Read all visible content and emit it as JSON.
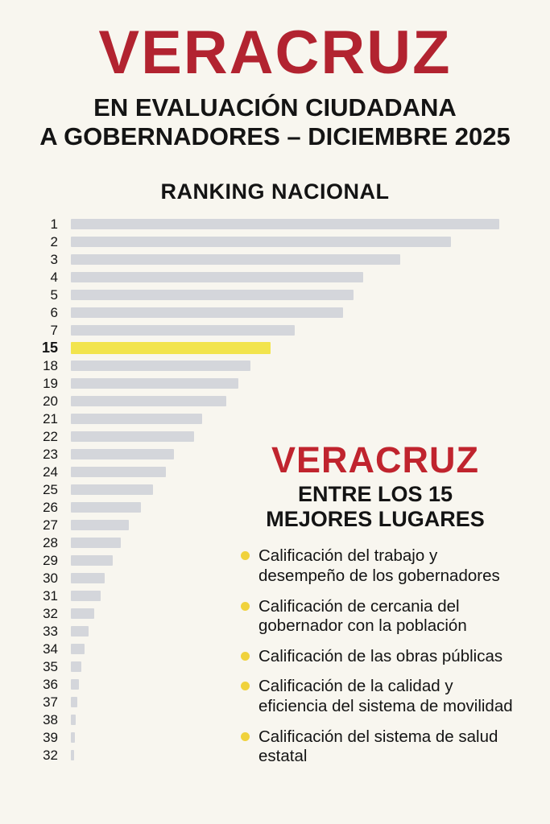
{
  "header": {
    "title": "VERACRUZ",
    "subtitle_line1": "EN EVALUACIÓN CIUDADANA",
    "subtitle_line2": "A GOBERNADORES – DICIEMBRE 2025"
  },
  "chart_data": {
    "type": "bar",
    "orientation": "horizontal",
    "title": "RANKING NACIONAL",
    "categories": [
      "1",
      "2",
      "3",
      "4",
      "5",
      "6",
      "7",
      "15",
      "18",
      "19",
      "20",
      "21",
      "22",
      "23",
      "24",
      "25",
      "26",
      "27",
      "28",
      "29",
      "30",
      "31",
      "32",
      "33",
      "34",
      "35",
      "36",
      "37",
      "38",
      "39",
      "32"
    ],
    "values": [
      100,
      88.7,
      76.8,
      68.3,
      66.0,
      63.6,
      52.3,
      46.6,
      41.9,
      39.1,
      36.2,
      30.6,
      28.7,
      24.0,
      22.1,
      19.2,
      16.4,
      13.6,
      11.7,
      9.8,
      7.9,
      7.0,
      5.5,
      4.2,
      3.2,
      2.5,
      1.9,
      1.5,
      1.1,
      0.9,
      0.8
    ],
    "xlim": [
      0,
      100
    ],
    "highlight_label": "15",
    "bar_color": "#d4d6db",
    "highlight_color": "#f2e44d",
    "grid": false,
    "legend": "none",
    "value_unit": "relative bar length (percent of longest bar)"
  },
  "panel": {
    "title": "VERACRUZ",
    "subtitle_line1": "ENTRE LOS 15",
    "subtitle_line2": "MEJORES LUGARES",
    "bullet_color": "#f0d23c",
    "bullets": [
      "Calificación del trabajo y desempeño de los gobernadores",
      "Calificación de cercania del gobernador con la población",
      "Calificación de las obras públicas",
      "Calificación de la calidad y eficiencia del sistema de movilidad",
      "Calificación del sistema de salud estatal"
    ]
  },
  "colors": {
    "background": "#f8f6ef",
    "accent_red": "#b22330",
    "text": "#141414"
  }
}
